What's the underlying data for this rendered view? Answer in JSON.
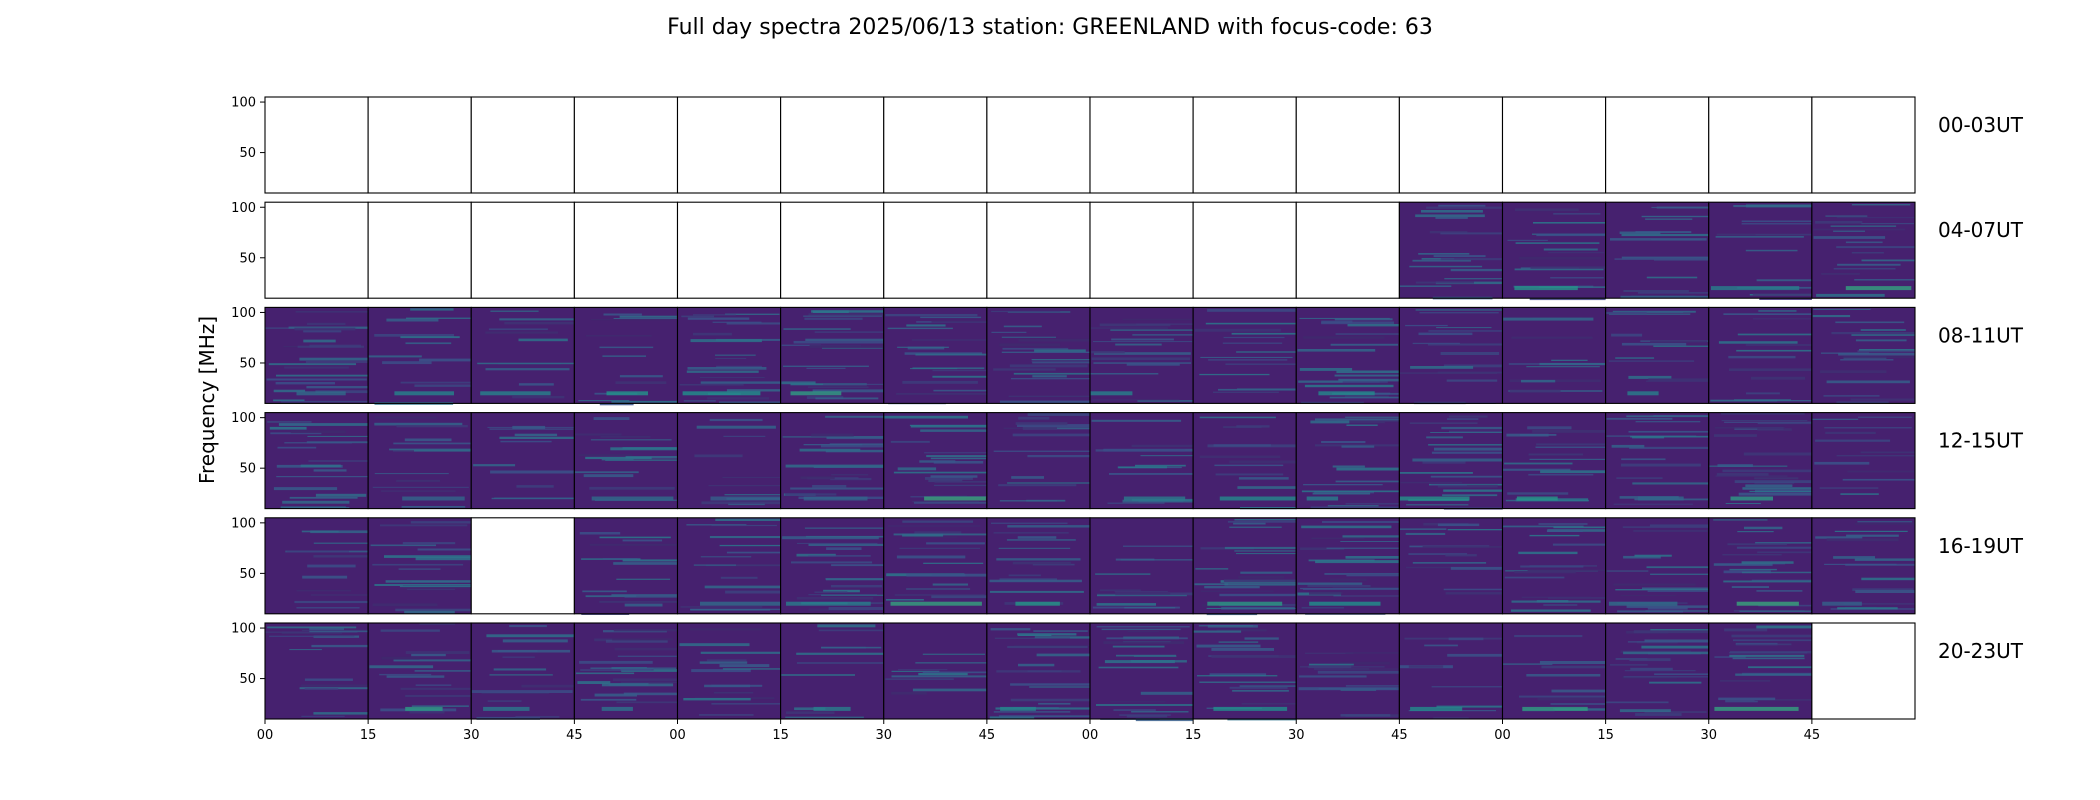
{
  "chart_data": {
    "type": "heatmap",
    "title": "Full day spectra 2025/06/13 station: GREENLAND with focus-code: 63",
    "ylabel": "Frequency [MHz]",
    "y_ticks": [
      "100",
      "50"
    ],
    "ylim": [
      10,
      105
    ],
    "x_tick_labels": [
      "00",
      "15",
      "30",
      "45",
      "00",
      "15",
      "30",
      "45",
      "00",
      "15",
      "30",
      "45",
      "00",
      "15",
      "30",
      "45"
    ],
    "rows": [
      "00-03UT",
      "04-07UT",
      "08-11UT",
      "12-15UT",
      "16-19UT",
      "20-23UT"
    ],
    "panels_per_row": 16,
    "colormap": [
      "#440154",
      "#3b528b",
      "#21918c",
      "#5ec962",
      "#fde725"
    ],
    "background_color": "#46216f",
    "data_available": [
      [
        0,
        0,
        0,
        0,
        0,
        0,
        0,
        0,
        0,
        0,
        0,
        0,
        0,
        0,
        0,
        0
      ],
      [
        0,
        0,
        0,
        0,
        0,
        0,
        0,
        0,
        0,
        0,
        0,
        1,
        1,
        1,
        1,
        1
      ],
      [
        1,
        1,
        1,
        1,
        1,
        1,
        1,
        1,
        1,
        1,
        1,
        1,
        1,
        1,
        1,
        1
      ],
      [
        1,
        1,
        1,
        1,
        1,
        1,
        1,
        1,
        1,
        1,
        1,
        1,
        1,
        1,
        1,
        1
      ],
      [
        1,
        1,
        0,
        1,
        1,
        1,
        1,
        1,
        1,
        1,
        1,
        1,
        1,
        1,
        1,
        1
      ],
      [
        1,
        1,
        1,
        1,
        1,
        1,
        1,
        1,
        1,
        1,
        1,
        1,
        1,
        1,
        1,
        0
      ]
    ]
  }
}
